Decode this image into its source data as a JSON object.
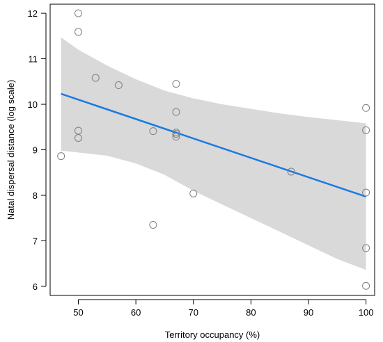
{
  "chart_data": {
    "type": "scatter",
    "title": "",
    "xlabel": "Territory occupancy (%)",
    "ylabel": "Natal dispersal distance (log scale)",
    "xlim": [
      45.1,
      101.5
    ],
    "ylim": [
      5.8,
      12.2
    ],
    "xticks": [
      50,
      60,
      70,
      80,
      90,
      100
    ],
    "yticks": [
      6,
      7,
      8,
      9,
      10,
      11,
      12
    ],
    "grid": false,
    "legend": "none",
    "points": [
      {
        "x": 47,
        "y": 8.86
      },
      {
        "x": 50,
        "y": 12.0
      },
      {
        "x": 50,
        "y": 11.59
      },
      {
        "x": 50,
        "y": 9.42
      },
      {
        "x": 50,
        "y": 9.26
      },
      {
        "x": 53,
        "y": 10.58
      },
      {
        "x": 57,
        "y": 10.42
      },
      {
        "x": 63,
        "y": 9.41
      },
      {
        "x": 63,
        "y": 7.35
      },
      {
        "x": 67,
        "y": 10.45
      },
      {
        "x": 67,
        "y": 9.83
      },
      {
        "x": 67,
        "y": 9.38
      },
      {
        "x": 67,
        "y": 9.35
      },
      {
        "x": 67,
        "y": 9.29
      },
      {
        "x": 70,
        "y": 8.04
      },
      {
        "x": 87,
        "y": 8.52
      },
      {
        "x": 100,
        "y": 9.92
      },
      {
        "x": 100,
        "y": 9.43
      },
      {
        "x": 100,
        "y": 8.06
      },
      {
        "x": 100,
        "y": 6.84
      },
      {
        "x": 100,
        "y": 6.01
      }
    ],
    "fit_line": {
      "x": [
        47,
        100
      ],
      "y": [
        10.23,
        7.97
      ]
    },
    "confidence_band": {
      "x": [
        47,
        50,
        55,
        60,
        65,
        70,
        75,
        80,
        85,
        90,
        95,
        100
      ],
      "upper": [
        11.47,
        11.2,
        10.85,
        10.55,
        10.3,
        10.13,
        10.0,
        9.9,
        9.8,
        9.72,
        9.65,
        9.58
      ],
      "lower": [
        8.98,
        8.94,
        8.87,
        8.7,
        8.45,
        8.1,
        7.8,
        7.5,
        7.2,
        6.9,
        6.6,
        6.36
      ]
    },
    "colors": {
      "line": "#1a7be0",
      "band": "#d9d9d9",
      "points": "#7f7f7f",
      "axis": "#000000"
    }
  }
}
